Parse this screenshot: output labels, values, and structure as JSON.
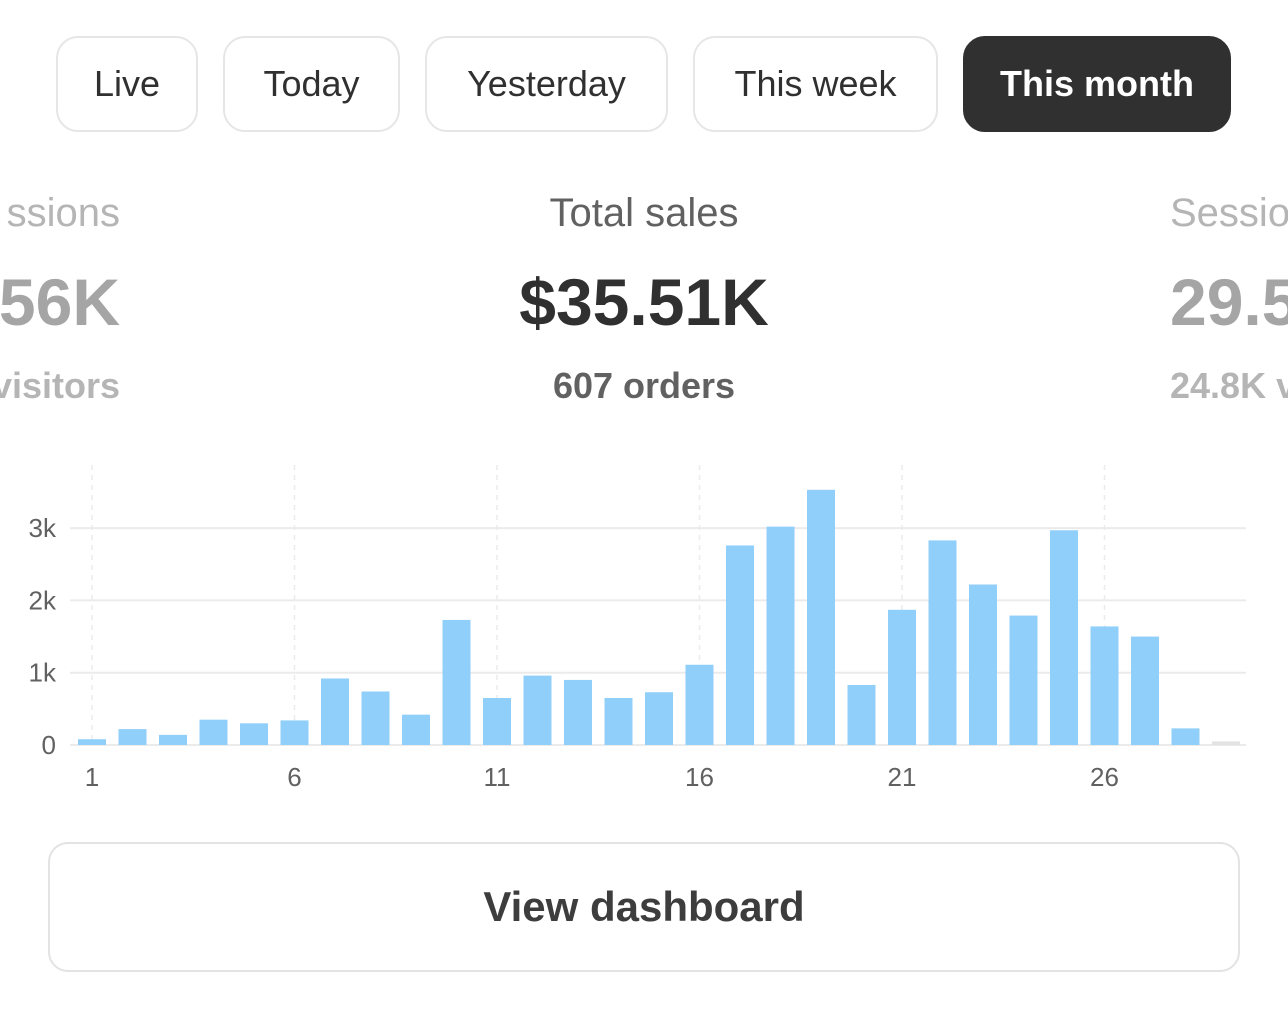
{
  "tabs": [
    {
      "label": "Live",
      "active": false
    },
    {
      "label": "Today",
      "active": false
    },
    {
      "label": "Yesterday",
      "active": false
    },
    {
      "label": "This week",
      "active": false
    },
    {
      "label": "This month",
      "active": true
    }
  ],
  "metrics": {
    "left": {
      "label": "ssions",
      "value": "56K",
      "sub": "visitors"
    },
    "center": {
      "label": "Total sales",
      "value": "$35.51K",
      "sub": "607 orders"
    },
    "right": {
      "label": "Sessio",
      "value": "29.5",
      "sub": "24.8K v"
    }
  },
  "chart_data": {
    "type": "bar",
    "categories": [
      1,
      2,
      3,
      4,
      5,
      6,
      7,
      8,
      9,
      10,
      11,
      12,
      13,
      14,
      15,
      16,
      17,
      18,
      19,
      20,
      21,
      22,
      23,
      24,
      25,
      26,
      27,
      28,
      29
    ],
    "values": [
      80,
      220,
      140,
      350,
      300,
      340,
      920,
      740,
      420,
      1730,
      650,
      960,
      900,
      650,
      730,
      1110,
      2760,
      3020,
      3530,
      830,
      1870,
      2830,
      2220,
      1790,
      2970,
      1640,
      1500,
      230,
      50
    ],
    "pending_index": 28,
    "x_ticks": [
      1,
      6,
      11,
      16,
      21,
      26
    ],
    "y_ticks": [
      {
        "value": 0,
        "label": "0"
      },
      {
        "value": 1000,
        "label": "1k"
      },
      {
        "value": 2000,
        "label": "2k"
      },
      {
        "value": 3000,
        "label": "3k"
      }
    ],
    "ylim": [
      0,
      3900
    ],
    "grid": true,
    "colors": {
      "bar": "#91cffb",
      "pending": "#e3e3e3",
      "grid": "#ebebeb",
      "tick_text": "#616161"
    }
  },
  "actions": {
    "view_dashboard_label": "View dashboard"
  }
}
